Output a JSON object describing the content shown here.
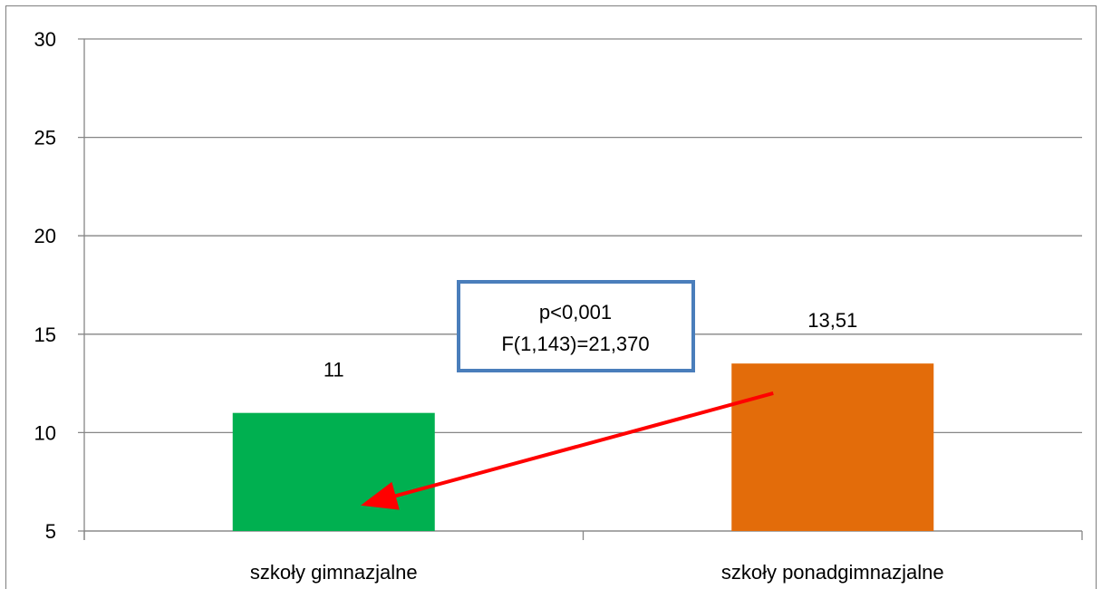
{
  "chart_data": {
    "type": "bar",
    "categories": [
      "szkoły gimnazjalne",
      "szkoły ponadgimnazjalne"
    ],
    "values": [
      11,
      13.51
    ],
    "value_labels": [
      "11",
      "13,51"
    ],
    "bar_colors": [
      "#00b050",
      "#e36c0a"
    ],
    "ylim": [
      5,
      30
    ],
    "yticks": [
      5,
      10,
      15,
      20,
      25,
      30
    ],
    "grid": true,
    "legend": "none",
    "annotation": {
      "lines": [
        "p<0,001",
        "F(1,143)=21,370"
      ],
      "border_color": "#4a7ebb"
    },
    "arrow": {
      "color": "#ff0000"
    }
  }
}
